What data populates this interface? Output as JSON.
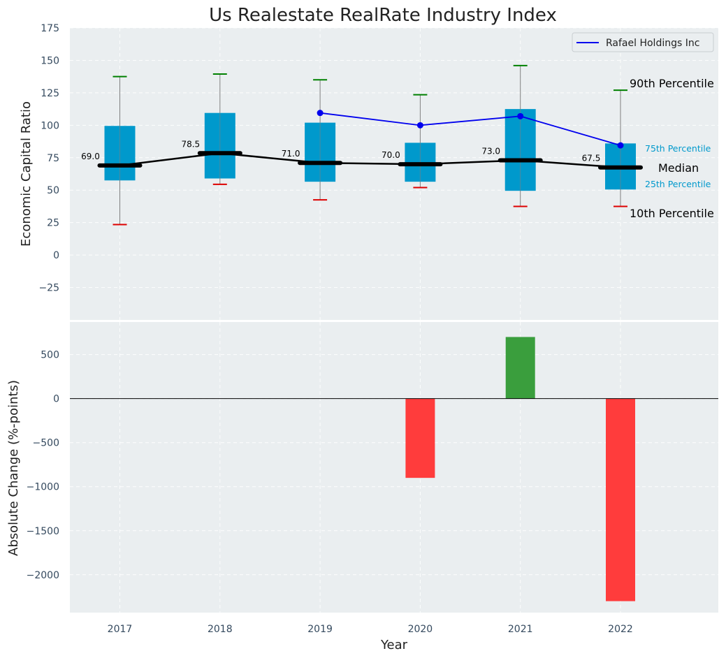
{
  "chart_data": [
    {
      "type": "box",
      "title": "Us Realestate RealRate Industry Index",
      "xlabel": "",
      "ylabel": "Economic Capital Ratio",
      "ylim": [
        -50,
        175
      ],
      "yticks": [
        -25,
        0,
        25,
        50,
        75,
        100,
        125,
        150,
        175
      ],
      "ytick_labels": [
        "−25",
        "0",
        "25",
        "50",
        "75",
        "100",
        "125",
        "150",
        "175"
      ],
      "categories": [
        "2017",
        "2018",
        "2019",
        "2020",
        "2021",
        "2022"
      ],
      "boxes": [
        {
          "year": "2017",
          "p10": 23.5,
          "p25": 57.5,
          "median": 69.0,
          "p75": 99.5,
          "p90": 137.5
        },
        {
          "year": "2018",
          "p10": 54.5,
          "p25": 59.0,
          "median": 78.5,
          "p75": 109.5,
          "p90": 139.5
        },
        {
          "year": "2019",
          "p10": 42.5,
          "p25": 56.5,
          "median": 71.0,
          "p75": 102.0,
          "p90": 135.0
        },
        {
          "year": "2020",
          "p10": 52.0,
          "p25": 56.5,
          "median": 70.0,
          "p75": 86.5,
          "p90": 123.5
        },
        {
          "year": "2021",
          "p10": 37.5,
          "p25": 49.5,
          "median": 73.0,
          "p75": 112.5,
          "p90": 146.0
        },
        {
          "year": "2022",
          "p10": 37.5,
          "p25": 50.5,
          "median": 67.5,
          "p75": 86.0,
          "p90": 127.0
        }
      ],
      "median_labels": [
        "69.0",
        "78.5",
        "71.0",
        "70.0",
        "73.0",
        "67.5"
      ],
      "series": [
        {
          "name": "Rafael Holdings Inc",
          "years": [
            "2019",
            "2020",
            "2021",
            "2022"
          ],
          "values": [
            109.5,
            100.0,
            107.0,
            84.5
          ],
          "color": "#0000ee"
        }
      ],
      "legend": {
        "position": "top-right",
        "entries": [
          "Rafael Holdings Inc"
        ]
      },
      "annotations": {
        "p90": "90th Percentile",
        "p75": "75th Percentile",
        "median": "Median",
        "p25": "25th Percentile",
        "p10": "10th Percentile"
      }
    },
    {
      "type": "bar",
      "xlabel": "Year",
      "ylabel": "Absolute Change (%-points)",
      "ylim": [
        -2430,
        870
      ],
      "yticks": [
        -2000,
        -1500,
        -1000,
        -500,
        0,
        500
      ],
      "ytick_labels": [
        "−2000",
        "−1500",
        "−1000",
        "−500",
        "0",
        "500"
      ],
      "categories": [
        "2017",
        "2018",
        "2019",
        "2020",
        "2021",
        "2022"
      ],
      "values": [
        null,
        null,
        null,
        -900,
        700,
        -2300
      ]
    }
  ],
  "colors": {
    "background": "#eaeef0",
    "box": "#0099cc",
    "median": "#000000",
    "whisker_top": "#008000",
    "whisker_bottom": "#dd0000",
    "whisker_line": "#808080",
    "company": "#0000ee",
    "bar_positive": "#3a9e3d",
    "bar_negative": "#ff3c3c"
  }
}
